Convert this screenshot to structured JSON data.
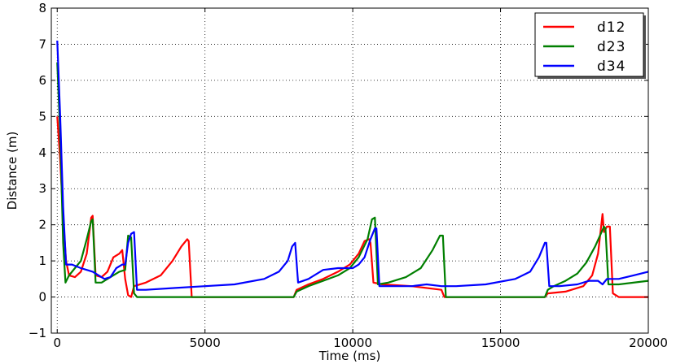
{
  "chart_data": {
    "type": "line",
    "xlabel": "Time (ms)",
    "ylabel": "Distance (m)",
    "xlim": [
      -200,
      20000
    ],
    "ylim": [
      -1,
      8
    ],
    "xticks": [
      0,
      5000,
      10000,
      15000,
      20000
    ],
    "xtick_labels": [
      "0",
      "5000",
      "10000",
      "15000",
      "20000"
    ],
    "yticks": [
      -1,
      0,
      1,
      2,
      3,
      4,
      5,
      6,
      7,
      8
    ],
    "ytick_labels": [
      "−1",
      "0",
      "1",
      "2",
      "3",
      "4",
      "5",
      "6",
      "7",
      "8"
    ],
    "grid": true,
    "legend_position": "top-right",
    "series": [
      {
        "name": "d12",
        "color": "#ff0000",
        "points": [
          [
            0,
            5.0
          ],
          [
            100,
            3.8
          ],
          [
            200,
            2.2
          ],
          [
            300,
            1.0
          ],
          [
            400,
            0.6
          ],
          [
            600,
            0.55
          ],
          [
            800,
            0.7
          ],
          [
            1000,
            1.2
          ],
          [
            1150,
            2.2
          ],
          [
            1200,
            2.25
          ],
          [
            1300,
            0.6
          ],
          [
            1500,
            0.55
          ],
          [
            1700,
            0.7
          ],
          [
            1900,
            1.1
          ],
          [
            2100,
            1.2
          ],
          [
            2200,
            1.3
          ],
          [
            2300,
            0.5
          ],
          [
            2400,
            0.05
          ],
          [
            2500,
            0.0
          ],
          [
            2600,
            0.3
          ],
          [
            3000,
            0.4
          ],
          [
            3500,
            0.6
          ],
          [
            3900,
            1.0
          ],
          [
            4200,
            1.4
          ],
          [
            4400,
            1.6
          ],
          [
            4450,
            1.55
          ],
          [
            4550,
            0.0
          ],
          [
            8000,
            0.0
          ],
          [
            8100,
            0.2
          ],
          [
            8500,
            0.35
          ],
          [
            9000,
            0.5
          ],
          [
            9500,
            0.7
          ],
          [
            9900,
            0.9
          ],
          [
            10200,
            1.2
          ],
          [
            10400,
            1.55
          ],
          [
            10550,
            1.6
          ],
          [
            10600,
            1.5
          ],
          [
            10700,
            0.4
          ],
          [
            11000,
            0.35
          ],
          [
            12000,
            0.3
          ],
          [
            13000,
            0.2
          ],
          [
            13100,
            0.0
          ],
          [
            16500,
            0.0
          ],
          [
            16600,
            0.1
          ],
          [
            17200,
            0.15
          ],
          [
            17800,
            0.3
          ],
          [
            18100,
            0.6
          ],
          [
            18300,
            1.2
          ],
          [
            18450,
            2.3
          ],
          [
            18500,
            1.8
          ],
          [
            18600,
            1.95
          ],
          [
            18700,
            1.95
          ],
          [
            18800,
            0.1
          ],
          [
            19000,
            0.0
          ],
          [
            20000,
            0.0
          ]
        ]
      },
      {
        "name": "d23",
        "color": "#007f00",
        "points": [
          [
            0,
            6.5
          ],
          [
            100,
            4.5
          ],
          [
            200,
            1.5
          ],
          [
            280,
            0.4
          ],
          [
            400,
            0.6
          ],
          [
            600,
            0.8
          ],
          [
            800,
            1.0
          ],
          [
            1000,
            1.6
          ],
          [
            1150,
            2.1
          ],
          [
            1200,
            2.15
          ],
          [
            1300,
            0.4
          ],
          [
            1500,
            0.4
          ],
          [
            1800,
            0.55
          ],
          [
            2100,
            0.7
          ],
          [
            2300,
            0.75
          ],
          [
            2400,
            1.7
          ],
          [
            2500,
            1.65
          ],
          [
            2600,
            0.1
          ],
          [
            2700,
            0.0
          ],
          [
            8000,
            0.0
          ],
          [
            8100,
            0.15
          ],
          [
            8500,
            0.3
          ],
          [
            9000,
            0.45
          ],
          [
            9500,
            0.6
          ],
          [
            9900,
            0.8
          ],
          [
            10200,
            1.1
          ],
          [
            10500,
            1.6
          ],
          [
            10650,
            2.15
          ],
          [
            10750,
            2.2
          ],
          [
            10850,
            0.35
          ],
          [
            11200,
            0.4
          ],
          [
            11800,
            0.55
          ],
          [
            12300,
            0.8
          ],
          [
            12700,
            1.3
          ],
          [
            12950,
            1.7
          ],
          [
            13050,
            1.7
          ],
          [
            13150,
            0.0
          ],
          [
            16500,
            0.0
          ],
          [
            16600,
            0.2
          ],
          [
            16800,
            0.3
          ],
          [
            17200,
            0.45
          ],
          [
            17600,
            0.65
          ],
          [
            17900,
            0.95
          ],
          [
            18200,
            1.4
          ],
          [
            18500,
            1.95
          ],
          [
            18550,
            1.9
          ],
          [
            18650,
            0.35
          ],
          [
            19000,
            0.35
          ],
          [
            20000,
            0.45
          ]
        ]
      },
      {
        "name": "d34",
        "color": "#0000ff",
        "points": [
          [
            0,
            7.1
          ],
          [
            100,
            5.0
          ],
          [
            200,
            2.5
          ],
          [
            300,
            0.9
          ],
          [
            500,
            0.9
          ],
          [
            800,
            0.8
          ],
          [
            1000,
            0.75
          ],
          [
            1200,
            0.7
          ],
          [
            1400,
            0.6
          ],
          [
            1600,
            0.5
          ],
          [
            1800,
            0.55
          ],
          [
            2000,
            0.8
          ],
          [
            2200,
            0.9
          ],
          [
            2300,
            0.9
          ],
          [
            2400,
            1.5
          ],
          [
            2500,
            1.75
          ],
          [
            2600,
            1.8
          ],
          [
            2700,
            0.2
          ],
          [
            3000,
            0.2
          ],
          [
            4000,
            0.25
          ],
          [
            5000,
            0.3
          ],
          [
            6000,
            0.35
          ],
          [
            7000,
            0.5
          ],
          [
            7500,
            0.7
          ],
          [
            7800,
            1.0
          ],
          [
            7950,
            1.4
          ],
          [
            8050,
            1.5
          ],
          [
            8150,
            0.4
          ],
          [
            8500,
            0.5
          ],
          [
            9000,
            0.75
          ],
          [
            9500,
            0.8
          ],
          [
            9800,
            0.8
          ],
          [
            10000,
            0.8
          ],
          [
            10200,
            0.9
          ],
          [
            10400,
            1.1
          ],
          [
            10600,
            1.6
          ],
          [
            10750,
            1.9
          ],
          [
            10800,
            1.9
          ],
          [
            10900,
            0.3
          ],
          [
            11500,
            0.3
          ],
          [
            12000,
            0.3
          ],
          [
            12500,
            0.35
          ],
          [
            13000,
            0.3
          ],
          [
            13500,
            0.3
          ],
          [
            14500,
            0.35
          ],
          [
            15500,
            0.5
          ],
          [
            16000,
            0.7
          ],
          [
            16300,
            1.1
          ],
          [
            16500,
            1.5
          ],
          [
            16550,
            1.5
          ],
          [
            16650,
            0.3
          ],
          [
            17000,
            0.3
          ],
          [
            17600,
            0.35
          ],
          [
            18000,
            0.45
          ],
          [
            18300,
            0.45
          ],
          [
            18450,
            0.35
          ],
          [
            18600,
            0.5
          ],
          [
            19000,
            0.5
          ],
          [
            19500,
            0.6
          ],
          [
            20000,
            0.7
          ]
        ]
      }
    ]
  }
}
